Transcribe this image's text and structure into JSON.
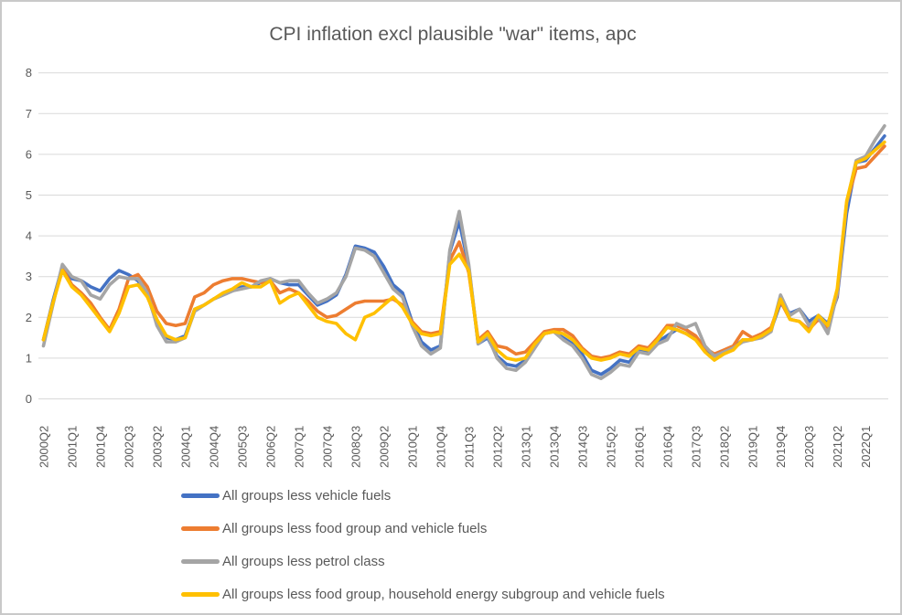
{
  "chart": {
    "title": "CPI inflation excl plausible \"war\" items, apc"
  },
  "legend": {
    "items": [
      {
        "label": "All groups less vehicle fuels"
      },
      {
        "label": "All groups less food group and vehicle fuels"
      },
      {
        "label": "All groups less petrol class"
      },
      {
        "label": "All groups less food group, household energy subgroup and vehicle fuels"
      }
    ]
  },
  "chart_data": {
    "type": "line",
    "title": "CPI inflation excl plausible \"war\" items, apc",
    "xlabel": "",
    "ylabel": "",
    "ylim": [
      0,
      8
    ],
    "y_ticks": [
      0,
      1,
      2,
      3,
      4,
      5,
      6,
      7,
      8
    ],
    "x_tick_every": 3,
    "grid": "horizontal",
    "legend_position": "bottom-left",
    "gridline_color": "#d9d9d9",
    "text_color": "#595959",
    "categories": [
      "2000Q2",
      "2000Q3",
      "2000Q4",
      "2001Q1",
      "2001Q2",
      "2001Q3",
      "2001Q4",
      "2002Q1",
      "2002Q2",
      "2002Q3",
      "2002Q4",
      "2003Q1",
      "2003Q2",
      "2003Q3",
      "2003Q4",
      "2004Q1",
      "2004Q2",
      "2004Q3",
      "2004Q4",
      "2005Q1",
      "2005Q2",
      "2005Q3",
      "2005Q4",
      "2006Q1",
      "2006Q2",
      "2006Q3",
      "2006Q4",
      "2007Q1",
      "2007Q2",
      "2007Q3",
      "2007Q4",
      "2008Q1",
      "2008Q2",
      "2008Q3",
      "2008Q4",
      "2009Q1",
      "2009Q2",
      "2009Q3",
      "2009Q4",
      "2010Q1",
      "2010Q2",
      "2010Q3",
      "2010Q4",
      "2011Q1",
      "2011Q2",
      "2011Q3",
      "2011Q4",
      "2012Q1",
      "2012Q2",
      "2012Q3",
      "2012Q4",
      "2013Q1",
      "2013Q2",
      "2013Q3",
      "2013Q4",
      "2014Q1",
      "2014Q2",
      "2014Q3",
      "2014Q4",
      "2015Q1",
      "2015Q2",
      "2015Q3",
      "2015Q4",
      "2016Q1",
      "2016Q2",
      "2016Q3",
      "2016Q4",
      "2017Q1",
      "2017Q2",
      "2017Q3",
      "2017Q4",
      "2018Q1",
      "2018Q2",
      "2018Q3",
      "2018Q4",
      "2019Q1",
      "2019Q2",
      "2019Q3",
      "2019Q4",
      "2020Q1",
      "2020Q2",
      "2020Q3",
      "2020Q4",
      "2021Q1",
      "2021Q2",
      "2021Q3",
      "2021Q4",
      "2022Q1",
      "2022Q2",
      "2022Q3"
    ],
    "series": [
      {
        "name": "All groups less vehicle fuels",
        "color": "#4472C4",
        "values": [
          1.45,
          2.4,
          3.25,
          2.95,
          2.9,
          2.75,
          2.65,
          2.95,
          3.15,
          3.05,
          2.9,
          2.55,
          1.85,
          1.5,
          1.45,
          1.55,
          2.2,
          2.3,
          2.45,
          2.55,
          2.65,
          2.75,
          2.75,
          2.85,
          2.95,
          2.85,
          2.8,
          2.8,
          2.55,
          2.3,
          2.4,
          2.55,
          3.05,
          3.75,
          3.7,
          3.6,
          3.25,
          2.8,
          2.6,
          1.9,
          1.4,
          1.2,
          1.3,
          3.6,
          4.35,
          3.25,
          1.35,
          1.5,
          1.05,
          0.85,
          0.8,
          0.95,
          1.3,
          1.6,
          1.65,
          1.5,
          1.35,
          1.1,
          0.7,
          0.6,
          0.75,
          0.95,
          0.9,
          1.2,
          1.15,
          1.4,
          1.55,
          1.7,
          1.6,
          1.5,
          1.2,
          1.05,
          1.15,
          1.25,
          1.45,
          1.45,
          1.55,
          1.7,
          2.35,
          2.1,
          2.2,
          1.9,
          2.05,
          1.85,
          2.5,
          4.55,
          5.8,
          5.85,
          6.15,
          6.45
        ]
      },
      {
        "name": "All groups less food group and vehicle fuels",
        "color": "#ED7D31",
        "values": [
          1.45,
          2.35,
          3.2,
          2.8,
          2.6,
          2.35,
          2.0,
          1.7,
          2.2,
          2.95,
          3.05,
          2.75,
          2.15,
          1.85,
          1.8,
          1.85,
          2.5,
          2.6,
          2.8,
          2.9,
          2.95,
          2.95,
          2.9,
          2.85,
          2.9,
          2.6,
          2.7,
          2.6,
          2.4,
          2.15,
          2.0,
          2.05,
          2.2,
          2.35,
          2.4,
          2.4,
          2.4,
          2.45,
          2.3,
          1.9,
          1.65,
          1.6,
          1.65,
          3.4,
          3.85,
          3.1,
          1.45,
          1.65,
          1.3,
          1.25,
          1.1,
          1.15,
          1.4,
          1.65,
          1.7,
          1.7,
          1.55,
          1.25,
          1.05,
          1.0,
          1.05,
          1.15,
          1.1,
          1.3,
          1.25,
          1.5,
          1.8,
          1.8,
          1.7,
          1.55,
          1.25,
          1.1,
          1.2,
          1.3,
          1.65,
          1.5,
          1.6,
          1.75,
          2.4,
          1.95,
          1.9,
          1.7,
          1.95,
          1.75,
          2.55,
          4.8,
          5.65,
          5.7,
          5.95,
          6.2
        ]
      },
      {
        "name": "All groups less petrol class",
        "color": "#A5A5A5",
        "values": [
          1.3,
          2.3,
          3.3,
          3.0,
          2.9,
          2.55,
          2.45,
          2.8,
          3.0,
          2.95,
          2.95,
          2.6,
          1.8,
          1.4,
          1.4,
          1.5,
          2.15,
          2.3,
          2.45,
          2.55,
          2.65,
          2.7,
          2.75,
          2.9,
          2.95,
          2.85,
          2.9,
          2.9,
          2.6,
          2.35,
          2.45,
          2.6,
          3.0,
          3.7,
          3.65,
          3.5,
          3.1,
          2.7,
          2.5,
          1.8,
          1.3,
          1.1,
          1.25,
          3.65,
          4.6,
          3.3,
          1.35,
          1.55,
          1.0,
          0.75,
          0.7,
          0.9,
          1.25,
          1.6,
          1.65,
          1.45,
          1.3,
          1.0,
          0.6,
          0.5,
          0.65,
          0.85,
          0.8,
          1.15,
          1.1,
          1.35,
          1.45,
          1.85,
          1.75,
          1.85,
          1.3,
          1.05,
          1.15,
          1.25,
          1.4,
          1.45,
          1.5,
          1.65,
          2.55,
          2.05,
          2.2,
          1.8,
          2.0,
          1.6,
          2.6,
          4.8,
          5.85,
          5.95,
          6.35,
          6.7
        ]
      },
      {
        "name": "All groups less food group, household energy subgroup and vehicle fuels",
        "color": "#FFC000",
        "values": [
          1.45,
          2.35,
          3.15,
          2.75,
          2.55,
          2.25,
          1.95,
          1.65,
          2.1,
          2.75,
          2.8,
          2.5,
          1.95,
          1.55,
          1.45,
          1.5,
          2.2,
          2.3,
          2.45,
          2.6,
          2.7,
          2.85,
          2.75,
          2.75,
          2.9,
          2.35,
          2.5,
          2.6,
          2.3,
          2.0,
          1.9,
          1.85,
          1.6,
          1.45,
          2.0,
          2.1,
          2.3,
          2.5,
          2.25,
          1.85,
          1.6,
          1.55,
          1.6,
          3.3,
          3.55,
          3.15,
          1.4,
          1.6,
          1.2,
          1.0,
          0.95,
          1.0,
          1.35,
          1.6,
          1.65,
          1.6,
          1.45,
          1.2,
          1.0,
          0.95,
          1.0,
          1.1,
          1.05,
          1.25,
          1.2,
          1.45,
          1.75,
          1.7,
          1.6,
          1.45,
          1.15,
          0.95,
          1.1,
          1.2,
          1.45,
          1.45,
          1.55,
          1.7,
          2.45,
          1.95,
          1.9,
          1.65,
          2.05,
          1.8,
          2.7,
          4.85,
          5.8,
          5.9,
          6.1,
          6.3
        ]
      }
    ]
  }
}
